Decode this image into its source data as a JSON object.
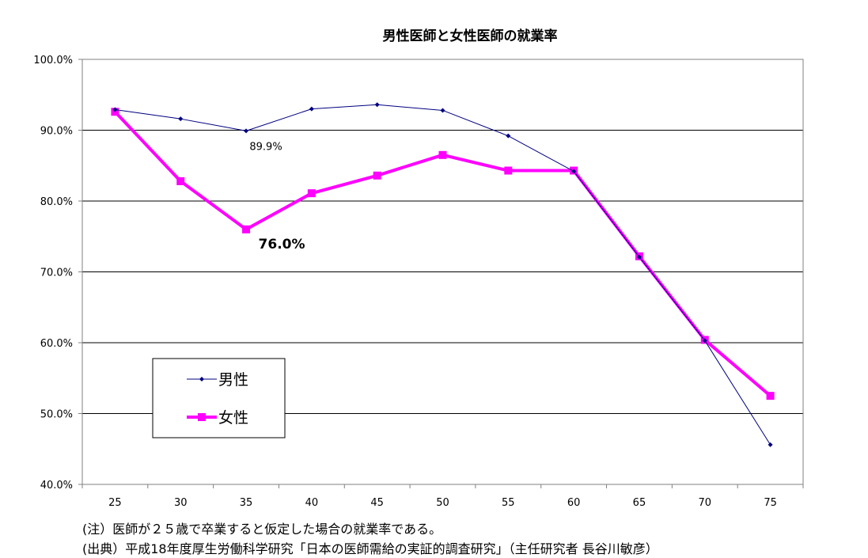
{
  "chart_data": {
    "type": "line",
    "title": "男性医師と女性医師の就業率",
    "x": [
      "25",
      "30",
      "35",
      "40",
      "45",
      "50",
      "55",
      "60",
      "65",
      "70",
      "75"
    ],
    "ylim": [
      40,
      100
    ],
    "yticks": [
      "40.0%",
      "50.0%",
      "60.0%",
      "70.0%",
      "80.0%",
      "90.0%",
      "100.0%"
    ],
    "grid": true,
    "legend_position": "bottom-left",
    "series": [
      {
        "name": "男性",
        "color": "#000080",
        "marker": "diamond",
        "values": [
          92.9,
          91.6,
          89.9,
          93.0,
          93.6,
          92.8,
          89.2,
          84.2,
          72.1,
          60.3,
          45.6
        ]
      },
      {
        "name": "女性",
        "color": "#FF00FF",
        "marker": "square",
        "values": [
          92.6,
          82.8,
          76.0,
          81.1,
          83.6,
          86.5,
          84.3,
          84.3,
          72.2,
          60.4,
          52.5
        ]
      }
    ],
    "annotations": [
      {
        "series": 0,
        "index": 2,
        "text": "89.9%"
      },
      {
        "series": 1,
        "index": 2,
        "text": "76.0%"
      }
    ]
  },
  "notes": {
    "note1": "(注）医師が２５歳で卒業すると仮定した場合の就業率である。",
    "note2": "(出典）平成18年度厚生労働科学研究「日本の医師需給の実証的調査研究」（主任研究者 長谷川敏彦）"
  }
}
